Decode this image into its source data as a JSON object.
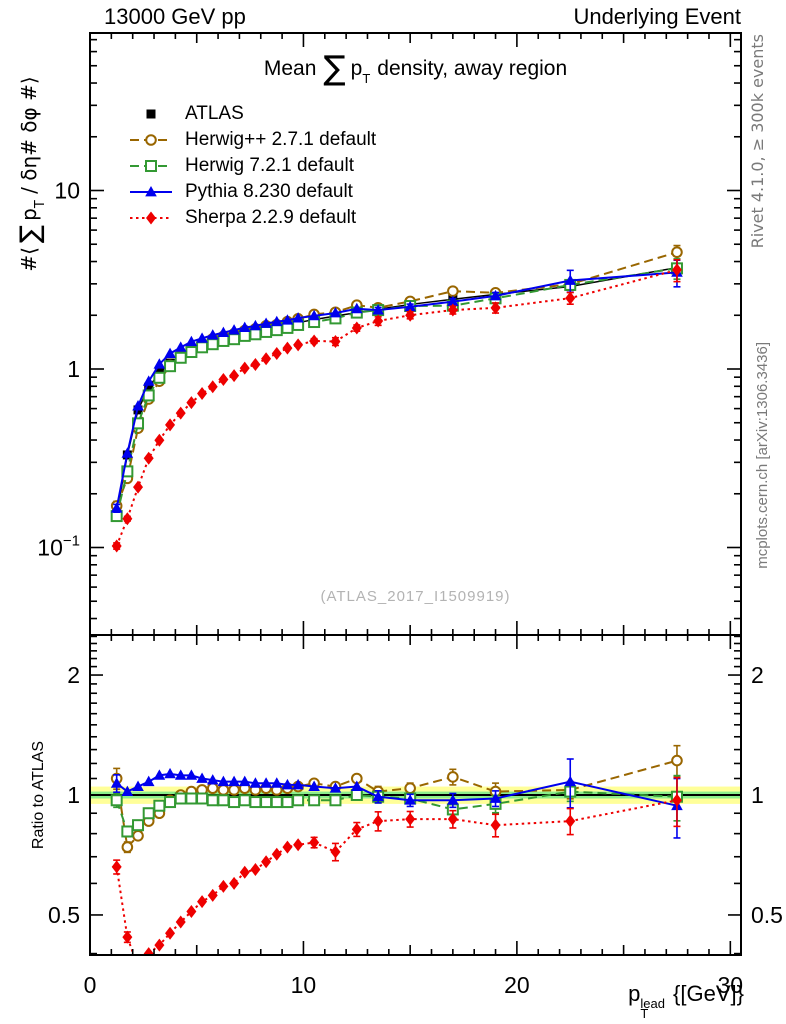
{
  "header": {
    "left": "13000 GeV pp",
    "right": "Underlying Event"
  },
  "title": {
    "prefix": "Mean",
    "sum": "∑",
    "p": "p",
    "sub": "T",
    "suffix": "density, away region"
  },
  "watermark": "(ATLAS_2017_I1509919)",
  "right_margin": {
    "top": "Rivet 4.1.0, ≥ 300k events",
    "bottom": "mcplots.cern.ch [arXiv:1306.3436]"
  },
  "axes": {
    "y_main_label": {
      "pre": "#⟨",
      "sum": "∑",
      "p": "p",
      "sub": "T",
      "post": " / δη# δφ #⟩"
    },
    "ratio_label": "Ratio to ATLAS",
    "x_label": {
      "p": "p",
      "sup": "lead",
      "sub": "T",
      "unit": " {[GeV]}"
    },
    "x_ticks": [
      0,
      10,
      20,
      30
    ],
    "y_ticks_main": [
      {
        "v": 10,
        "base": "10"
      },
      {
        "v": 1,
        "base": "1"
      },
      {
        "v": 0.1,
        "base": "10",
        "sup": "−1"
      }
    ],
    "y_ticks_ratio": [
      {
        "v": 2,
        "label": "2"
      },
      {
        "v": 1,
        "label": "1"
      },
      {
        "v": 0.5,
        "label": "0.5"
      }
    ]
  },
  "chart_data": {
    "type": "line",
    "x_axis": "pT lead [GeV]",
    "y_axis_main": "mean sum pT / deta dphi (away region)",
    "y_axis_ratio": "Ratio to ATLAS",
    "y_scale": "log",
    "x_range": [
      0,
      30.5
    ],
    "y_main_range": [
      0.032,
      76
    ],
    "y_ratio_range": [
      0.397,
      2.52
    ],
    "band": {
      "yellow_frac": 0.05,
      "green_frac": 0.02,
      "yellow_color": "#ffff99",
      "green_color": "#8cee8c"
    },
    "x": [
      1.25,
      1.75,
      2.25,
      2.75,
      3.25,
      3.75,
      4.25,
      4.75,
      5.25,
      5.75,
      6.25,
      6.75,
      7.25,
      7.75,
      8.25,
      8.75,
      9.25,
      9.75,
      10.5,
      11.5,
      12.5,
      13.5,
      15,
      17,
      19,
      22.5,
      27.5
    ],
    "series": [
      {
        "name": "ATLAS",
        "color": "#000000",
        "marker": "square-filled",
        "line": "solid",
        "values": [
          0.155,
          0.33,
          0.59,
          0.79,
          0.95,
          1.08,
          1.18,
          1.27,
          1.35,
          1.42,
          1.48,
          1.53,
          1.58,
          1.63,
          1.68,
          1.72,
          1.77,
          1.82,
          1.89,
          1.98,
          2.07,
          2.16,
          2.3,
          2.46,
          2.62,
          2.9,
          3.7
        ],
        "err": [
          0.03,
          0.02,
          0.015,
          0.012,
          0.012,
          0.012,
          0.012,
          0.012,
          0.012,
          0.012,
          0.012,
          0.012,
          0.012,
          0.012,
          0.012,
          0.012,
          0.012,
          0.012,
          0.012,
          0.015,
          0.015,
          0.02,
          0.02,
          0.025,
          0.03,
          0.04,
          0.05
        ],
        "ratio": null
      },
      {
        "name": "Herwig++ 2.7.1 default",
        "color": "#996600",
        "marker": "circle-open",
        "line": "dashed",
        "values": [
          0.171,
          0.244,
          0.466,
          0.679,
          0.855,
          1.048,
          1.18,
          1.295,
          1.391,
          1.477,
          1.524,
          1.576,
          1.643,
          1.679,
          1.747,
          1.772,
          1.841,
          1.911,
          2.022,
          2.079,
          2.277,
          2.203,
          2.392,
          2.731,
          2.672,
          2.987,
          4.51
        ],
        "ratio": [
          1.1,
          0.74,
          0.79,
          0.86,
          0.9,
          0.97,
          1.0,
          1.02,
          1.03,
          1.04,
          1.03,
          1.03,
          1.04,
          1.03,
          1.04,
          1.03,
          1.04,
          1.05,
          1.07,
          1.05,
          1.1,
          1.02,
          1.04,
          1.11,
          1.02,
          1.03,
          1.22
        ],
        "err": [
          0.06,
          0.03,
          0.02,
          0.015,
          0.012,
          0.012,
          0.012,
          0.012,
          0.012,
          0.012,
          0.012,
          0.012,
          0.012,
          0.012,
          0.012,
          0.012,
          0.015,
          0.015,
          0.015,
          0.02,
          0.02,
          0.03,
          0.03,
          0.045,
          0.05,
          0.05,
          0.09
        ]
      },
      {
        "name": "Herwig 7.2.1 default",
        "color": "#339933",
        "marker": "square-open",
        "line": "dashed",
        "values": [
          0.15,
          0.267,
          0.496,
          0.711,
          0.893,
          1.037,
          1.156,
          1.245,
          1.323,
          1.377,
          1.436,
          1.469,
          1.533,
          1.565,
          1.613,
          1.651,
          1.699,
          1.765,
          1.833,
          1.921,
          2.07,
          2.138,
          2.254,
          2.263,
          2.489,
          2.958,
          3.663
        ],
        "ratio": [
          0.97,
          0.81,
          0.84,
          0.9,
          0.94,
          0.96,
          0.98,
          0.98,
          0.98,
          0.97,
          0.97,
          0.96,
          0.97,
          0.96,
          0.96,
          0.96,
          0.96,
          0.97,
          0.97,
          0.97,
          1.0,
          0.99,
          0.98,
          0.92,
          0.95,
          1.02,
          0.99
        ],
        "err": [
          0.04,
          0.03,
          0.02,
          0.015,
          0.012,
          0.012,
          0.012,
          0.012,
          0.012,
          0.012,
          0.012,
          0.012,
          0.012,
          0.012,
          0.012,
          0.012,
          0.015,
          0.015,
          0.015,
          0.02,
          0.02,
          0.035,
          0.03,
          0.045,
          0.05,
          0.055,
          0.13
        ]
      },
      {
        "name": "Pythia 8.230 default",
        "color": "#0000ee",
        "marker": "triangle-filled",
        "line": "solid",
        "values": [
          0.166,
          0.337,
          0.62,
          0.853,
          1.064,
          1.22,
          1.322,
          1.422,
          1.485,
          1.548,
          1.598,
          1.652,
          1.706,
          1.744,
          1.798,
          1.84,
          1.876,
          1.929,
          1.985,
          2.059,
          2.174,
          2.138,
          2.231,
          2.386,
          2.568,
          3.132,
          3.478
        ],
        "ratio": [
          1.07,
          1.02,
          1.05,
          1.08,
          1.12,
          1.13,
          1.12,
          1.12,
          1.1,
          1.09,
          1.08,
          1.08,
          1.08,
          1.07,
          1.07,
          1.07,
          1.06,
          1.06,
          1.05,
          1.04,
          1.05,
          0.99,
          0.97,
          0.97,
          0.98,
          1.08,
          0.94
        ],
        "err": [
          0.05,
          0.02,
          0.015,
          0.012,
          0.012,
          0.012,
          0.012,
          0.012,
          0.012,
          0.012,
          0.012,
          0.012,
          0.012,
          0.012,
          0.012,
          0.012,
          0.015,
          0.015,
          0.015,
          0.02,
          0.02,
          0.035,
          0.035,
          0.04,
          0.045,
          0.14,
          0.17
        ]
      },
      {
        "name": "Sherpa 2.2.9 default",
        "color": "#ee0000",
        "marker": "diamond-filled",
        "line": "dotted",
        "values": [
          0.102,
          0.145,
          0.218,
          0.316,
          0.399,
          0.486,
          0.566,
          0.648,
          0.729,
          0.795,
          0.873,
          0.918,
          1.011,
          1.06,
          1.142,
          1.221,
          1.31,
          1.365,
          1.436,
          1.426,
          1.697,
          1.858,
          2.001,
          2.14,
          2.201,
          2.494,
          3.589
        ],
        "ratio": [
          0.66,
          0.44,
          0.37,
          0.4,
          0.42,
          0.45,
          0.48,
          0.51,
          0.54,
          0.56,
          0.59,
          0.6,
          0.64,
          0.65,
          0.68,
          0.71,
          0.74,
          0.75,
          0.76,
          0.72,
          0.82,
          0.86,
          0.87,
          0.87,
          0.84,
          0.86,
          0.97
        ],
        "err": [
          0.04,
          0.03,
          0.02,
          0.02,
          0.015,
          0.015,
          0.015,
          0.015,
          0.015,
          0.015,
          0.015,
          0.015,
          0.015,
          0.015,
          0.015,
          0.02,
          0.02,
          0.02,
          0.03,
          0.05,
          0.04,
          0.055,
          0.045,
          0.05,
          0.065,
          0.075,
          0.14
        ]
      }
    ]
  }
}
